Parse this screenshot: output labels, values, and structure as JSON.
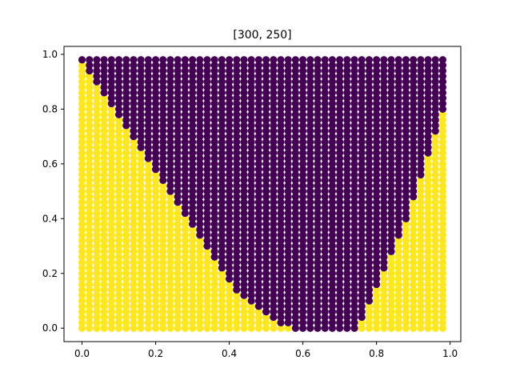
{
  "chart_data": {
    "type": "scatter",
    "title": "[300, 250]",
    "xlabel": "",
    "ylabel": "",
    "xlim": [
      -0.049,
      1.029
    ],
    "ylim": [
      -0.049,
      1.029
    ],
    "x_ticks": [
      "0.0",
      "0.2",
      "0.4",
      "0.6",
      "0.8",
      "1.0"
    ],
    "y_ticks": [
      "0.0",
      "0.2",
      "0.4",
      "0.6",
      "0.8",
      "1.0"
    ],
    "grid": false,
    "grid_points": {
      "x_start": 0.0,
      "x_step": 0.02,
      "x_count": 50,
      "y_start": 0.0,
      "y_step": 0.02,
      "y_count": 50
    },
    "series": [
      {
        "color": "#fde725"
      },
      {
        "color": "#440154"
      }
    ],
    "decision_boundary": {
      "description_of_values": "for each grid column i (x = 0.02*i), the y value at and above which points are in class 1; a value above 1 means no class-1 points in that column",
      "class1_lower_y": [
        0.98,
        0.94,
        0.9,
        0.86,
        0.82,
        0.78,
        0.74,
        0.7,
        0.66,
        0.62,
        0.58,
        0.54,
        0.5,
        0.46,
        0.42,
        0.38,
        0.34,
        0.3,
        0.26,
        0.22,
        0.18,
        0.14,
        0.12,
        0.1,
        0.08,
        0.06,
        0.04,
        0.02,
        0.02,
        0.0,
        0.0,
        0.0,
        0.0,
        0.0,
        0.0,
        0.0,
        0.0,
        0.0,
        0.04,
        0.1,
        0.16,
        0.22,
        0.28,
        0.34,
        0.4,
        0.48,
        0.56,
        0.64,
        0.72,
        0.8
      ]
    }
  }
}
